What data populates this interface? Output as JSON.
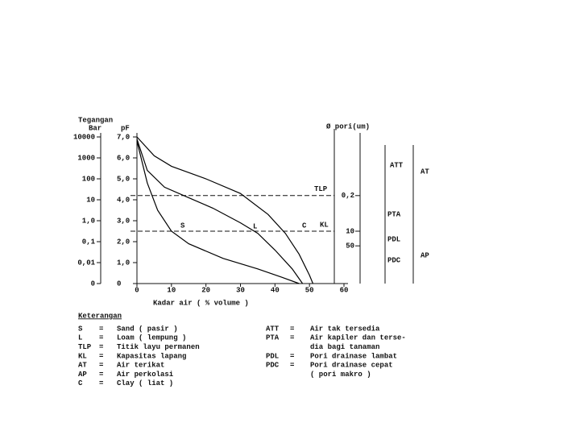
{
  "chart_data": {
    "type": "line",
    "title_left": "Tegangan",
    "bar_axis_label": "Bar",
    "y_axis_label": "pF",
    "pore_axis_label": "Ø pori(um)",
    "x_axis_label": "Kadar air ( % volume )",
    "xlim": [
      0,
      60
    ],
    "xticks": [
      0,
      10,
      20,
      30,
      40,
      50,
      60
    ],
    "ylim": [
      0,
      7
    ],
    "yticks": [
      {
        "value": 0,
        "label": "0"
      },
      {
        "value": 1,
        "label": "1,0"
      },
      {
        "value": 2,
        "label": "2,0"
      },
      {
        "value": 3,
        "label": "3,0"
      },
      {
        "value": 4,
        "label": "4,0"
      },
      {
        "value": 5,
        "label": "5,0"
      },
      {
        "value": 6,
        "label": "6,0"
      },
      {
        "value": 7,
        "label": "7,0"
      }
    ],
    "bar_ticks": [
      {
        "value": 0,
        "label": "0"
      },
      {
        "value": 1,
        "label": "0,01"
      },
      {
        "value": 2,
        "label": "0,1"
      },
      {
        "value": 3,
        "label": "1,0"
      },
      {
        "value": 4,
        "label": "10"
      },
      {
        "value": 5,
        "label": "100"
      },
      {
        "value": 6,
        "label": "1000"
      },
      {
        "value": 7,
        "label": "10000"
      }
    ],
    "pore_ticks": [
      {
        "value": 4.2,
        "label": "0,2"
      },
      {
        "value": 2.5,
        "label": "10"
      },
      {
        "value": 1.8,
        "label": "50"
      }
    ],
    "reference_lines": [
      {
        "label": "TLP",
        "value": 4.2
      },
      {
        "label": "KL",
        "value": 2.5
      }
    ],
    "series": [
      {
        "name": "S",
        "color": "#000000",
        "x": [
          0,
          3,
          6,
          10,
          15,
          25,
          35,
          42,
          47
        ],
        "values": [
          6.8,
          4.8,
          3.5,
          2.5,
          1.9,
          1.2,
          0.7,
          0.3,
          0
        ]
      },
      {
        "name": "L",
        "color": "#000000",
        "x": [
          0,
          3,
          8,
          15,
          22,
          30,
          35,
          40,
          45,
          48
        ],
        "values": [
          6.9,
          5.4,
          4.6,
          4.1,
          3.6,
          2.9,
          2.4,
          1.6,
          0.7,
          0
        ]
      },
      {
        "name": "C",
        "color": "#000000",
        "x": [
          0,
          5,
          10,
          20,
          30,
          38,
          43,
          47,
          50,
          51
        ],
        "values": [
          7.0,
          6.1,
          5.6,
          5.0,
          4.3,
          3.3,
          2.4,
          1.4,
          0.4,
          0
        ]
      }
    ],
    "zones": [
      "ATT",
      "PTA",
      "PDL",
      "PDC",
      "AT",
      "AP"
    ]
  },
  "legend": {
    "title": "Keterangan",
    "left": [
      {
        "abbr": "S",
        "sep": "=",
        "text": "Sand ( pasir )"
      },
      {
        "abbr": "L",
        "sep": "=",
        "text": "Loam ( lempung )"
      },
      {
        "abbr": "TLP",
        "sep": "=",
        "text": "Titik layu permanen"
      },
      {
        "abbr": "KL",
        "sep": "=",
        "text": "Kapasitas lapang"
      },
      {
        "abbr": "AT",
        "sep": "=",
        "text": "Air terikat"
      },
      {
        "abbr": "AP",
        "sep": "=",
        "text": "Air perkolasi"
      },
      {
        "abbr": "C",
        "sep": "=",
        "text": "Clay ( liat )"
      }
    ],
    "right": [
      {
        "abbr": "ATT",
        "sep": "=",
        "text": "Air tak tersedia"
      },
      {
        "abbr": "PTA",
        "sep": "=",
        "text": "Air kapiler dan terse-"
      },
      {
        "text": "dia bagi tanaman"
      },
      {
        "abbr": "PDL",
        "sep": "=",
        "text": "Pori drainase lambat"
      },
      {
        "abbr": "PDC",
        "sep": "=",
        "text": "Pori drainase cepat"
      },
      {
        "text": "( pori makro )"
      }
    ]
  }
}
